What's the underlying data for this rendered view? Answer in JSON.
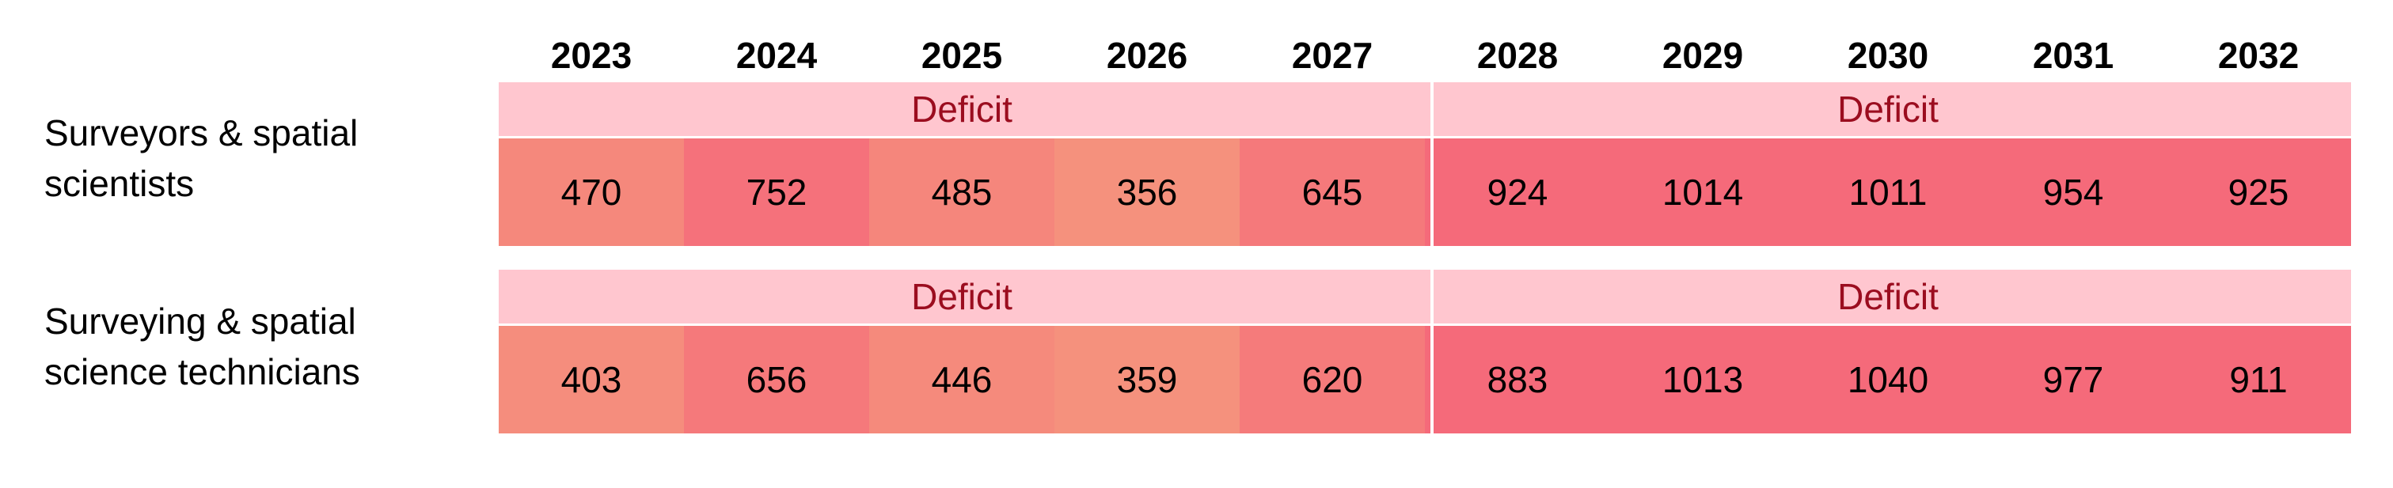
{
  "chart_data": {
    "type": "table",
    "title": "",
    "columns": [
      "2023",
      "2024",
      "2025",
      "2026",
      "2027",
      "2028",
      "2029",
      "2030",
      "2031",
      "2032"
    ],
    "rows": [
      {
        "label_lines": [
          "Surveyors & spatial",
          "scientists"
        ],
        "segments": [
          {
            "label": "Deficit",
            "from": "2023",
            "to": "2027"
          },
          {
            "label": "Deficit",
            "from": "2028",
            "to": "2032"
          }
        ],
        "values": [
          470,
          752,
          485,
          356,
          645,
          924,
          1014,
          1011,
          954,
          925
        ]
      },
      {
        "label_lines": [
          "Surveying & spatial",
          "science technicians"
        ],
        "segments": [
          {
            "label": "Deficit",
            "from": "2023",
            "to": "2027"
          },
          {
            "label": "Deficit",
            "from": "2028",
            "to": "2032"
          }
        ],
        "values": [
          403,
          656,
          446,
          359,
          620,
          883,
          1013,
          1040,
          977,
          911
        ]
      }
    ],
    "colors": {
      "deficit_band": "#ffc6cf",
      "deficit_text": "#9b0d1f",
      "scale_low": "#f5917d",
      "scale_high": "#f56a7a"
    }
  }
}
